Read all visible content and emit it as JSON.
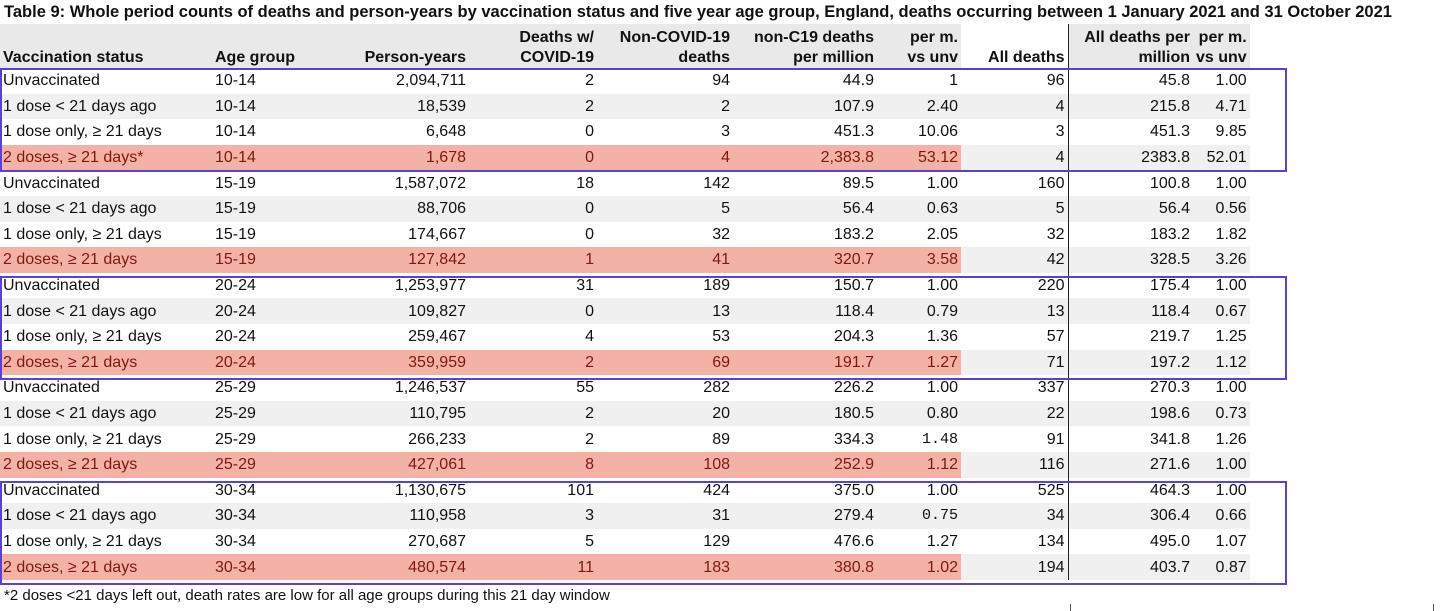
{
  "title": "Table 9: Whole period counts of deaths and person-years by vaccination status and five year age group, England, deaths occurring between 1 January 2021 and 31 October 2021",
  "headers": {
    "status": "Vaccination status",
    "age": "Age group",
    "py": "Person-years",
    "covid": [
      "Deaths w/",
      "COVID-19"
    ],
    "noncovid": [
      "Non-COVID-19",
      "deaths"
    ],
    "rate": [
      "non-C19 deaths",
      "per million"
    ],
    "ratio": [
      "per m.",
      "vs unv"
    ],
    "all": "All deaths",
    "allrate": [
      "All deaths per",
      "million"
    ],
    "allratio": [
      "per m.",
      "vs unv"
    ]
  },
  "rows": [
    [
      "Unvaccinated",
      "10-14",
      "2,094,711",
      "2",
      "94",
      "44.9",
      "1",
      "96",
      "45.8",
      "1.00"
    ],
    [
      "1 dose < 21 days ago",
      "10-14",
      "18,539",
      "2",
      "2",
      "107.9",
      "2.40",
      "4",
      "215.8",
      "4.71"
    ],
    [
      "1 dose only, ≥ 21 days",
      "10-14",
      "6,648",
      "0",
      "3",
      "451.3",
      "10.06",
      "3",
      "451.3",
      "9.85"
    ],
    [
      "2 doses, ≥ 21 days*",
      "10-14",
      "1,678",
      "0",
      "4",
      "2,383.8",
      "53.12",
      "4",
      "2383.8",
      "52.01"
    ],
    [
      "Unvaccinated",
      "15-19",
      "1,587,072",
      "18",
      "142",
      "89.5",
      "1.00",
      "160",
      "100.8",
      "1.00"
    ],
    [
      "1 dose < 21 days ago",
      "15-19",
      "88,706",
      "0",
      "5",
      "56.4",
      "0.63",
      "5",
      "56.4",
      "0.56"
    ],
    [
      "1 dose only, ≥ 21 days",
      "15-19",
      "174,667",
      "0",
      "32",
      "183.2",
      "2.05",
      "32",
      "183.2",
      "1.82"
    ],
    [
      "2 doses, ≥ 21 days",
      "15-19",
      "127,842",
      "1",
      "41",
      "320.7",
      "3.58",
      "42",
      "328.5",
      "3.26"
    ],
    [
      "Unvaccinated",
      "20-24",
      "1,253,977",
      "31",
      "189",
      "150.7",
      "1.00",
      "220",
      "175.4",
      "1.00"
    ],
    [
      "1 dose < 21 days ago",
      "20-24",
      "109,827",
      "0",
      "13",
      "118.4",
      "0.79",
      "13",
      "118.4",
      "0.67"
    ],
    [
      "1 dose only, ≥ 21 days",
      "20-24",
      "259,467",
      "4",
      "53",
      "204.3",
      "1.36",
      "57",
      "219.7",
      "1.25"
    ],
    [
      "2 doses, ≥ 21 days",
      "20-24",
      "359,959",
      "2",
      "69",
      "191.7",
      "1.27",
      "71",
      "197.2",
      "1.12"
    ],
    [
      "Unvaccinated",
      "25-29",
      "1,246,537",
      "55",
      "282",
      "226.2",
      "1.00",
      "337",
      "270.3",
      "1.00"
    ],
    [
      "1 dose < 21 days ago",
      "25-29",
      "110,795",
      "2",
      "20",
      "180.5",
      "0.80",
      "22",
      "198.6",
      "0.73"
    ],
    [
      "1 dose only, ≥ 21 days",
      "25-29",
      "266,233",
      "2",
      "89",
      "334.3",
      "1.48",
      "91",
      "341.8",
      "1.26"
    ],
    [
      "2 doses, ≥ 21 days",
      "25-29",
      "427,061",
      "8",
      "108",
      "252.9",
      "1.12",
      "116",
      "271.6",
      "1.00"
    ],
    [
      "Unvaccinated",
      "30-34",
      "1,130,675",
      "101",
      "424",
      "375.0",
      "1.00",
      "525",
      "464.3",
      "1.00"
    ],
    [
      "1 dose < 21 days ago",
      "30-34",
      "110,958",
      "3",
      "31",
      "279.4",
      "0.75",
      "34",
      "306.4",
      "0.66"
    ],
    [
      "1 dose only, ≥ 21 days",
      "30-34",
      "270,687",
      "5",
      "129",
      "476.6",
      "1.27",
      "134",
      "495.0",
      "1.07"
    ],
    [
      "2 doses, ≥ 21 days",
      "30-34",
      "480,574",
      "11",
      "183",
      "380.8",
      "1.02",
      "194",
      "403.7",
      "0.87"
    ]
  ],
  "footnote": "*2 doses <21 days left out, death rates are low for all age groups during this 21 day window",
  "colors": {
    "highlight": "#f4b1a6",
    "box": "#5a3fd8",
    "stripe": "#f0f0f0"
  }
}
